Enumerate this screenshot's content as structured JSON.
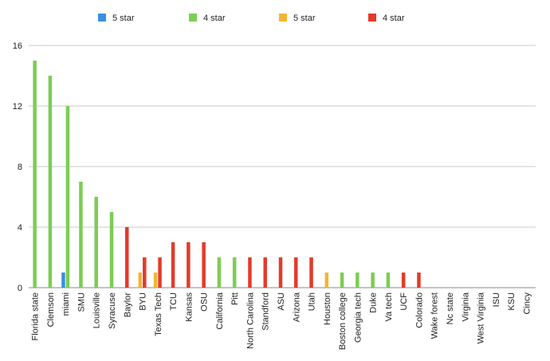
{
  "chart_data": {
    "type": "bar",
    "categories": [
      "Florida state",
      "Clemson",
      "miami",
      "SMU",
      "Louisville",
      "Syracuse",
      "Baylor",
      "BYU",
      "Texas Tech",
      "TCU",
      "Kansas",
      "OSU",
      "California",
      "Pitt",
      "North Carolina",
      "Standford",
      "ASU",
      "Arizona",
      "Utah",
      "Houston",
      "Boston college",
      "Georgia tech",
      "Duke",
      "Va tech",
      "UCF",
      "Colorado",
      "Wake forest",
      "Nc state",
      "Virginia",
      "West Virginia",
      "ISU",
      "KSU",
      "Cincy"
    ],
    "series": [
      {
        "name": "5 star",
        "color": "#3a8fe0",
        "values": [
          0,
          0,
          1,
          0,
          0,
          0,
          0,
          0,
          0,
          0,
          0,
          0,
          0,
          0,
          0,
          0,
          0,
          0,
          0,
          0,
          0,
          0,
          0,
          0,
          0,
          0,
          0,
          0,
          0,
          0,
          0,
          0,
          0
        ]
      },
      {
        "name": "4 star",
        "color": "#7ccd52",
        "values": [
          15,
          14,
          12,
          7,
          6,
          5,
          0,
          0,
          0,
          0,
          0,
          0,
          2,
          2,
          0,
          0,
          0,
          0,
          0,
          0,
          1,
          1,
          1,
          1,
          0,
          0,
          0,
          0,
          0,
          0,
          0,
          0,
          0
        ]
      },
      {
        "name": "5 star",
        "color": "#f2b530",
        "values": [
          0,
          0,
          0,
          0,
          0,
          0,
          0,
          1,
          1,
          0,
          0,
          0,
          0,
          0,
          0,
          0,
          0,
          0,
          0,
          1,
          0,
          0,
          0,
          0,
          0,
          0,
          0,
          0,
          0,
          0,
          0,
          0,
          0
        ]
      },
      {
        "name": "4 star",
        "color": "#e23b2a",
        "values": [
          0,
          0,
          0,
          0,
          0,
          0,
          4,
          2,
          2,
          3,
          3,
          3,
          0,
          0,
          2,
          2,
          2,
          2,
          2,
          0,
          0,
          0,
          0,
          0,
          1,
          1,
          0,
          0,
          0,
          0,
          0,
          0,
          0
        ]
      }
    ],
    "yticks": [
      0,
      4,
      8,
      12,
      16
    ],
    "ylim": [
      0,
      16
    ],
    "grid": true,
    "legend": "top"
  }
}
